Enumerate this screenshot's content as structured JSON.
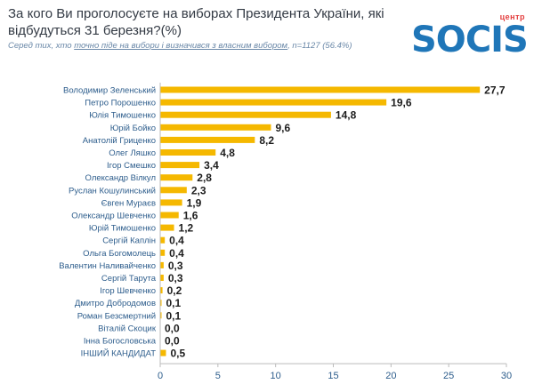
{
  "header": {
    "title": "За кого Ви проголосуєте на виборах Президента України, які відбудуться 31 березня?(%)",
    "subtitle_pre": "Серед тих, хто ",
    "subtitle_underlined": "точно піде на вибори і визначився з власним вибором",
    "subtitle_post": ", n=1127 (56.4%)"
  },
  "logo": {
    "top_text": "центр",
    "main_text": "SOCIS",
    "color": "#1f76b8",
    "accent": "#e33d3d"
  },
  "chart_data": {
    "type": "bar",
    "orientation": "horizontal",
    "categories": [
      "Володимир Зеленський",
      "Петро Порошенко",
      "Юлія Тимошенко",
      "Юрій Бойко",
      "Анатолій Гриценко",
      "Олег Ляшко",
      "Ігор Смешко",
      "Олександр Вілкул",
      "Руслан Кошулинський",
      "Євген Мураєв",
      "Олександр Шевченко",
      "Юрій Тимошенко",
      "Сергій Каплін",
      "Ольга Богомолець",
      "Валентин Наливайченко",
      "Сергій Тарута",
      "Ігор Шевченко",
      "Дмитро Добродомов",
      "Роман Безсмертний",
      "Віталій Скоцик",
      "Інна Богословська",
      "ІНШИЙ КАНДИДАТ"
    ],
    "values": [
      27.7,
      19.6,
      14.8,
      9.6,
      8.2,
      4.8,
      3.4,
      2.8,
      2.3,
      1.9,
      1.6,
      1.2,
      0.4,
      0.4,
      0.3,
      0.3,
      0.2,
      0.1,
      0.1,
      0.0,
      0.0,
      0.5
    ],
    "value_labels": [
      "27,7",
      "19,6",
      "14,8",
      "9,6",
      "8,2",
      "4,8",
      "3,4",
      "2,8",
      "2,3",
      "1,9",
      "1,6",
      "1,2",
      "0,4",
      "0,4",
      "0,3",
      "0,3",
      "0,2",
      "0,1",
      "0,1",
      "0,0",
      "0,0",
      "0,5"
    ],
    "xlim": [
      0,
      30
    ],
    "xticks": [
      0,
      5,
      10,
      15,
      20,
      25,
      30
    ],
    "bar_color": "#f5b800",
    "grid": false
  }
}
